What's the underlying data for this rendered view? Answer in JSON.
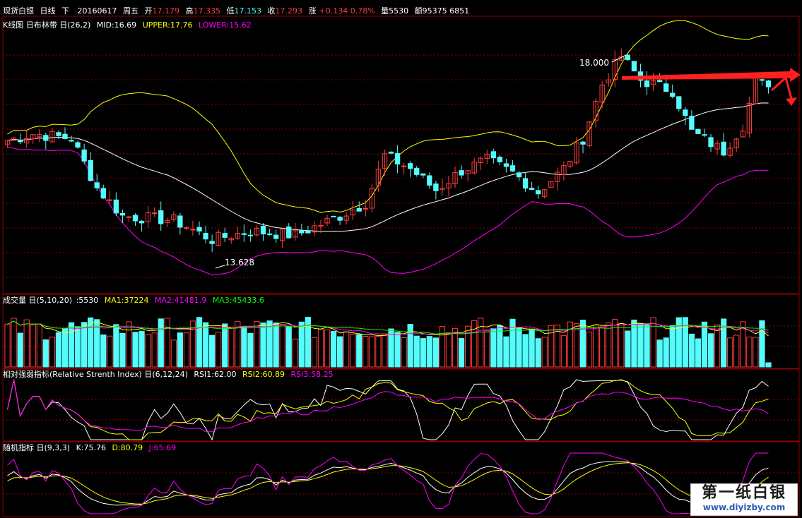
{
  "header": {
    "symbol": "现货白银",
    "period": "日线",
    "direction": "下",
    "date": "20160617",
    "weekday": "周五",
    "open_label": "开",
    "open": "17.179",
    "high_label": "高",
    "high": "17.335",
    "low_label": "低",
    "low": "17.153",
    "close_label": "收",
    "close": "17.293",
    "change_label": "涨",
    "change": "+0.134 0.78%",
    "volume_label": "量5530",
    "amount_label": "额95375 6851"
  },
  "kline_header": {
    "name": "K线图 日布林带 日(26,2)",
    "mid": "MID:16.69",
    "upper": "UPPER:17.76",
    "lower": "LOWER:15.62"
  },
  "vol_header": {
    "name": "成交量 日(5,10,20)",
    "v": ":5530",
    "ma1": "MA1:37224",
    "ma2": "MA2:41481.9",
    "ma3": "MA3:45433.6"
  },
  "rsi_header": {
    "name": "相对强弱指标(Relative Strenth Index) 日(6,12,24)",
    "rsi1": "RSI1:62.00",
    "rsi2": "RSI2:60.89",
    "rsi3": "RSI3:58.25"
  },
  "kdj_header": {
    "name": "随机指标 日(9,3,3)",
    "k": "K:75.76",
    "d": "D:80.79",
    "j": "J:65.69"
  },
  "annotations": {
    "high_mark": "18.000",
    "low_mark": "13.628"
  },
  "watermark": {
    "line1": "第一纸白银",
    "line2": "www.diyizby.com"
  },
  "colors": {
    "up": "#ff3c3c",
    "down": "#54fcfc",
    "mid": "#ffffff",
    "upper": "#ffff00",
    "lower": "#ff00ff",
    "ma1": "#ffffff",
    "ma2": "#ffff00",
    "ma3": "#ff00ff",
    "grid": "#8b0000",
    "arrow": "#ff2020"
  },
  "chart_data": {
    "type": "candlestick",
    "bars": 120,
    "price_axis": [
      12.5,
      18.6
    ],
    "anchors": [
      {
        "i": 0,
        "price": 16.05
      },
      {
        "i": 4,
        "price": 16.2
      },
      {
        "i": 10,
        "price": 16.1
      },
      {
        "i": 14,
        "price": 14.95
      },
      {
        "i": 18,
        "price": 14.3
      },
      {
        "i": 26,
        "price": 14.2
      },
      {
        "i": 32,
        "price": 13.75
      },
      {
        "i": 38,
        "price": 13.95
      },
      {
        "i": 45,
        "price": 13.85
      },
      {
        "i": 52,
        "price": 14.3
      },
      {
        "i": 56,
        "price": 14.6
      },
      {
        "i": 59,
        "price": 15.7
      },
      {
        "i": 63,
        "price": 15.4
      },
      {
        "i": 67,
        "price": 14.9
      },
      {
        "i": 71,
        "price": 15.35
      },
      {
        "i": 75,
        "price": 15.6
      },
      {
        "i": 79,
        "price": 15.3
      },
      {
        "i": 83,
        "price": 14.85
      },
      {
        "i": 87,
        "price": 15.4
      },
      {
        "i": 90,
        "price": 16.1
      },
      {
        "i": 93,
        "price": 17.35
      },
      {
        "i": 96,
        "price": 18.0
      },
      {
        "i": 99,
        "price": 17.45
      },
      {
        "i": 104,
        "price": 17.2
      },
      {
        "i": 107,
        "price": 16.25
      },
      {
        "i": 112,
        "price": 15.8
      },
      {
        "i": 115,
        "price": 16.4
      },
      {
        "i": 117,
        "price": 17.4
      },
      {
        "i": 119,
        "price": 17.29
      }
    ],
    "volume_range": [
      0,
      80000
    ],
    "rsi_range": [
      0,
      100
    ],
    "kdj_range": [
      -10,
      110
    ]
  }
}
